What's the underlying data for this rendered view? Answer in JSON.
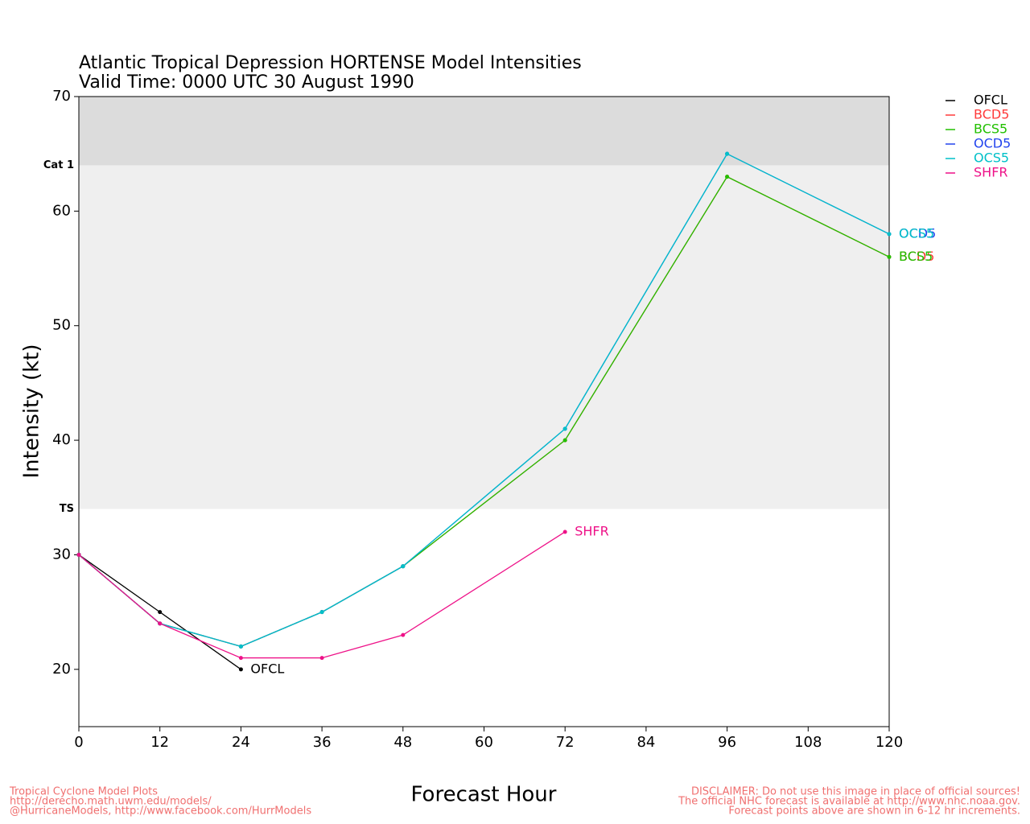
{
  "chart_data": {
    "type": "line",
    "title": "Atlantic Tropical Depression HORTENSE Model Intensities",
    "subtitle": "Valid Time: 0000 UTC 30 August 1990",
    "x_label": "Forecast Hour",
    "y_label": "Intensity (kt)",
    "x": [
      0,
      12,
      24,
      36,
      48,
      72,
      96,
      120
    ],
    "series": [
      {
        "name": "OFCL",
        "color": "#000000",
        "values": [
          30,
          25,
          20,
          null,
          null,
          null,
          null,
          null
        ]
      },
      {
        "name": "BCD5",
        "color": "#ff3b3b",
        "values": [
          30,
          24,
          22,
          25,
          29,
          40,
          63,
          56
        ]
      },
      {
        "name": "BCS5",
        "color": "#22c000",
        "values": [
          30,
          24,
          22,
          25,
          29,
          40,
          63,
          56
        ]
      },
      {
        "name": "OCD5",
        "color": "#2244ee",
        "values": [
          30,
          24,
          22,
          25,
          29,
          41,
          65,
          58
        ]
      },
      {
        "name": "OCS5",
        "color": "#00c0c8",
        "values": [
          30,
          24,
          22,
          25,
          29,
          41,
          65,
          58
        ]
      },
      {
        "name": "SHFR",
        "color": "#ee1188",
        "values": [
          30,
          24,
          21,
          21,
          23,
          32,
          null,
          null
        ]
      }
    ],
    "thresholds": [
      {
        "label": "TS",
        "value": 34
      },
      {
        "label": "Cat 1",
        "value": 64
      }
    ],
    "xlim": [
      0,
      120
    ],
    "ylim": [
      15,
      70
    ],
    "xticks": [
      0,
      12,
      24,
      36,
      48,
      60,
      72,
      84,
      96,
      108,
      120
    ],
    "yticks": [
      20,
      30,
      40,
      50,
      60,
      70
    ],
    "legend": "right",
    "footer_left": [
      "Tropical Cyclone Model Plots",
      "http://derecho.math.uwm.edu/models/",
      "@HurricaneModels, http://www.facebook.com/HurrModels"
    ],
    "footer_right": [
      "DISCLAIMER: Do not use this image in place of official sources!",
      "The official NHC forecast is available at http://www.nhc.noaa.gov.",
      "Forecast points above are shown in 6-12 hr increments."
    ]
  }
}
